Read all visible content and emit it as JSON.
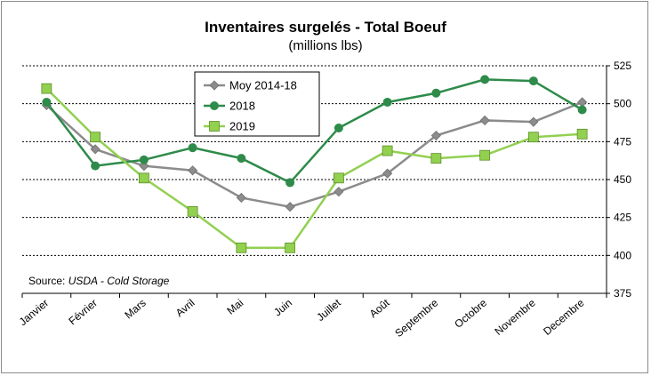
{
  "chart_data": {
    "type": "line",
    "title": "Inventaires surgelés - Total Boeuf",
    "subtitle": "(millions lbs)",
    "categories": [
      "Janvier",
      "Février",
      "Mars",
      "Avril",
      "Mai",
      "Juin",
      "Juillet",
      "Août",
      "Septembre",
      "Octobre",
      "Novembre",
      "Decembre"
    ],
    "ylim": [
      375,
      525
    ],
    "yticks": [
      375,
      400,
      425,
      450,
      475,
      500,
      525
    ],
    "y_axis_side": "right",
    "grid": "horizontal dashed",
    "legend_placement": "top-left",
    "series": [
      {
        "name": "Moy 2014-18",
        "color": "#8c8c8c",
        "marker": "diamond",
        "values": [
          499,
          470,
          459,
          456,
          438,
          432,
          442,
          454,
          479,
          489,
          488,
          501
        ]
      },
      {
        "name": "2018",
        "color": "#2e8b4a",
        "marker": "circle",
        "values": [
          501,
          459,
          463,
          471,
          464,
          448,
          484,
          501,
          507,
          516,
          515,
          496
        ]
      },
      {
        "name": "2019",
        "color": "#92d050",
        "marker": "square",
        "values": [
          510,
          478,
          451,
          429,
          405,
          405,
          451,
          469,
          464,
          466,
          478,
          480
        ]
      }
    ],
    "source_label": "Source: ",
    "source_value": "USDA - Cold Storage"
  }
}
